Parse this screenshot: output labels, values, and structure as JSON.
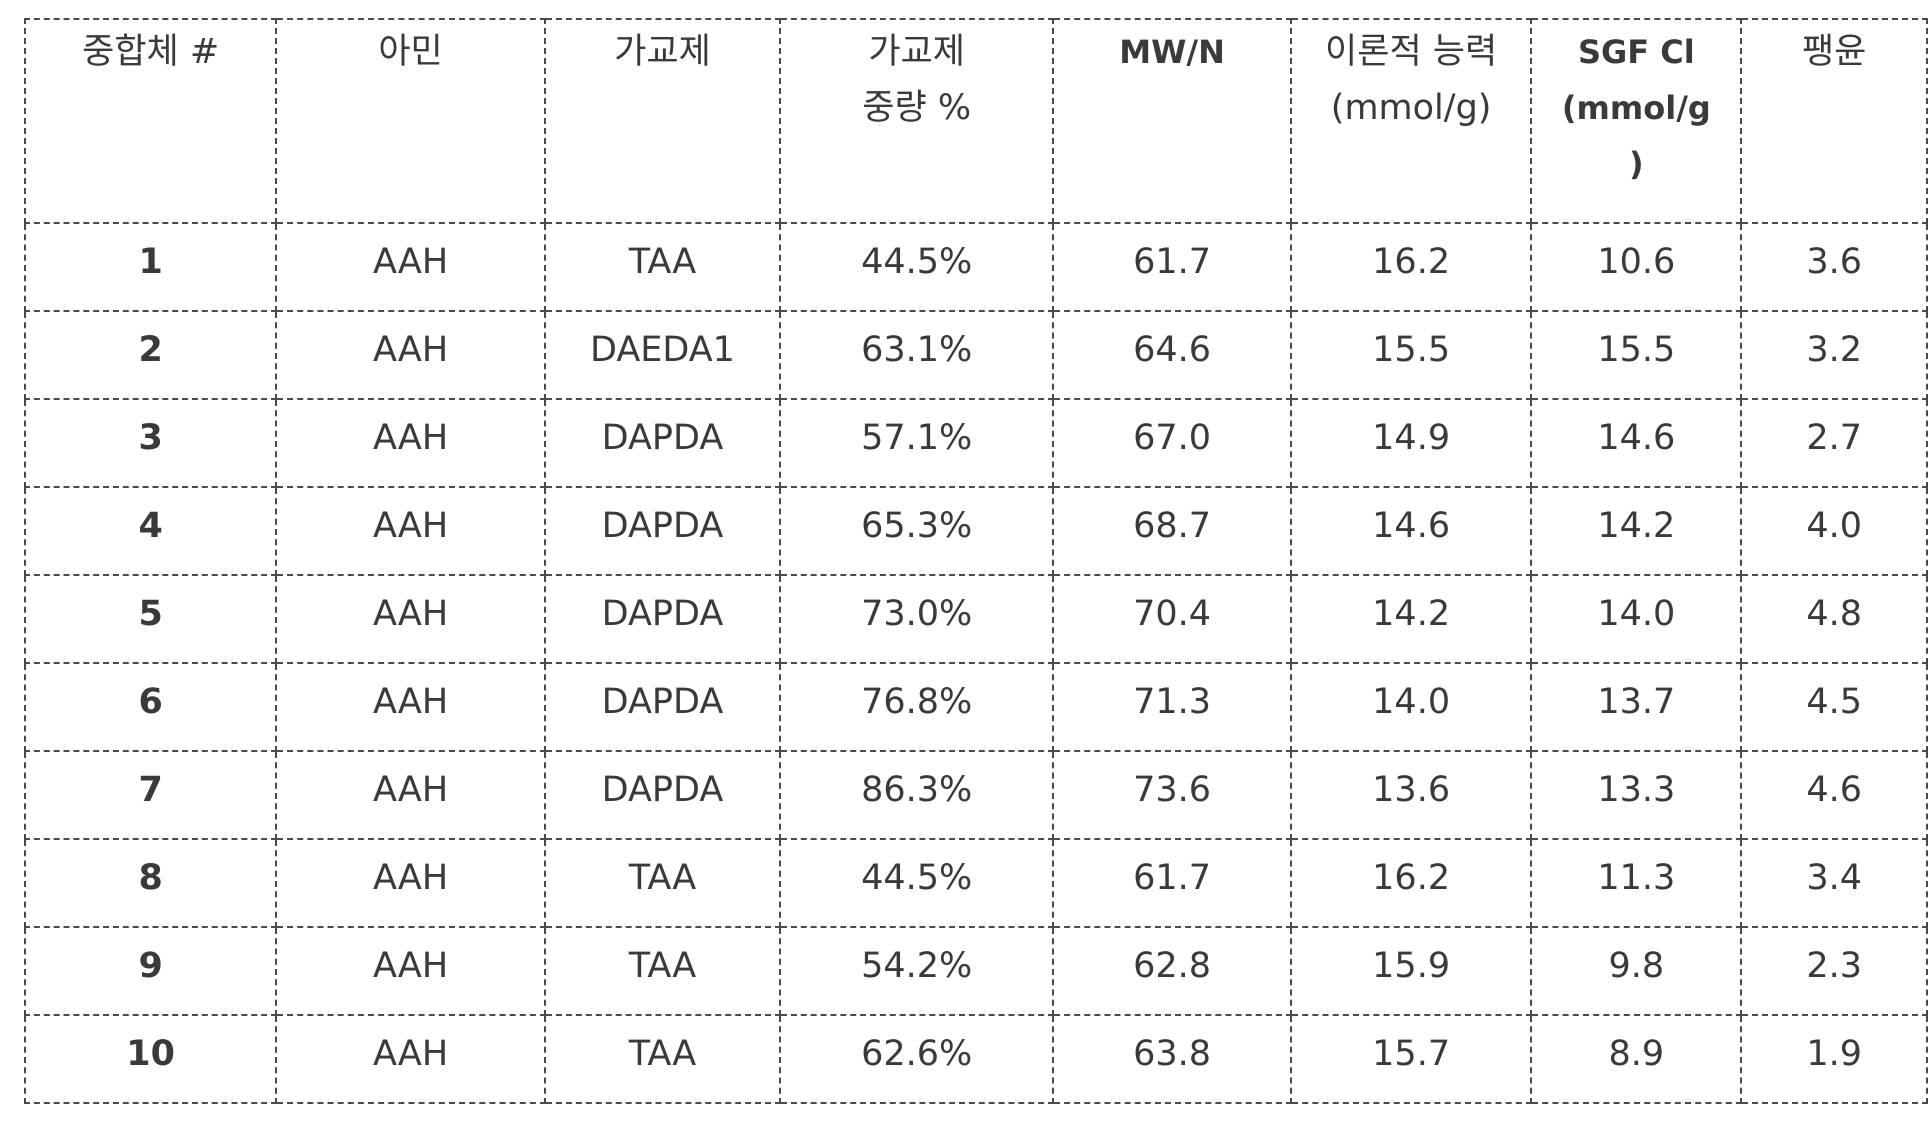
{
  "table": {
    "headers": [
      {
        "lines": [
          "중합체 #"
        ],
        "bold": false
      },
      {
        "lines": [
          "아민"
        ],
        "bold": false
      },
      {
        "lines": [
          "가교제"
        ],
        "bold": false
      },
      {
        "lines": [
          "가교제",
          "중량 %"
        ],
        "bold": false
      },
      {
        "lines": [
          "MW/N"
        ],
        "bold": true
      },
      {
        "lines": [
          "이론적 능력",
          "(mmol/g)"
        ],
        "bold": false
      },
      {
        "lines": [
          "SGF Cl",
          "(mmol/g",
          ")"
        ],
        "bold": true
      },
      {
        "lines": [
          "팽윤"
        ],
        "bold": false
      }
    ],
    "rows": [
      [
        "1",
        "AAH",
        "TAA",
        "44.5%",
        "61.7",
        "16.2",
        "10.6",
        "3.6"
      ],
      [
        "2",
        "AAH",
        "DAEDA1",
        "63.1%",
        "64.6",
        "15.5",
        "15.5",
        "3.2"
      ],
      [
        "3",
        "AAH",
        "DAPDA",
        "57.1%",
        "67.0",
        "14.9",
        "14.6",
        "2.7"
      ],
      [
        "4",
        "AAH",
        "DAPDA",
        "65.3%",
        "68.7",
        "14.6",
        "14.2",
        "4.0"
      ],
      [
        "5",
        "AAH",
        "DAPDA",
        "73.0%",
        "70.4",
        "14.2",
        "14.0",
        "4.8"
      ],
      [
        "6",
        "AAH",
        "DAPDA",
        "76.8%",
        "71.3",
        "14.0",
        "13.7",
        "4.5"
      ],
      [
        "7",
        "AAH",
        "DAPDA",
        "86.3%",
        "73.6",
        "13.6",
        "13.3",
        "4.6"
      ],
      [
        "8",
        "AAH",
        "TAA",
        "44.5%",
        "61.7",
        "16.2",
        "11.3",
        "3.4"
      ],
      [
        "9",
        "AAH",
        "TAA",
        "54.2%",
        "62.8",
        "15.9",
        "9.8",
        "2.3"
      ],
      [
        "10",
        "AAH",
        "TAA",
        "62.6%",
        "63.8",
        "15.7",
        "8.9",
        "1.9"
      ]
    ]
  }
}
